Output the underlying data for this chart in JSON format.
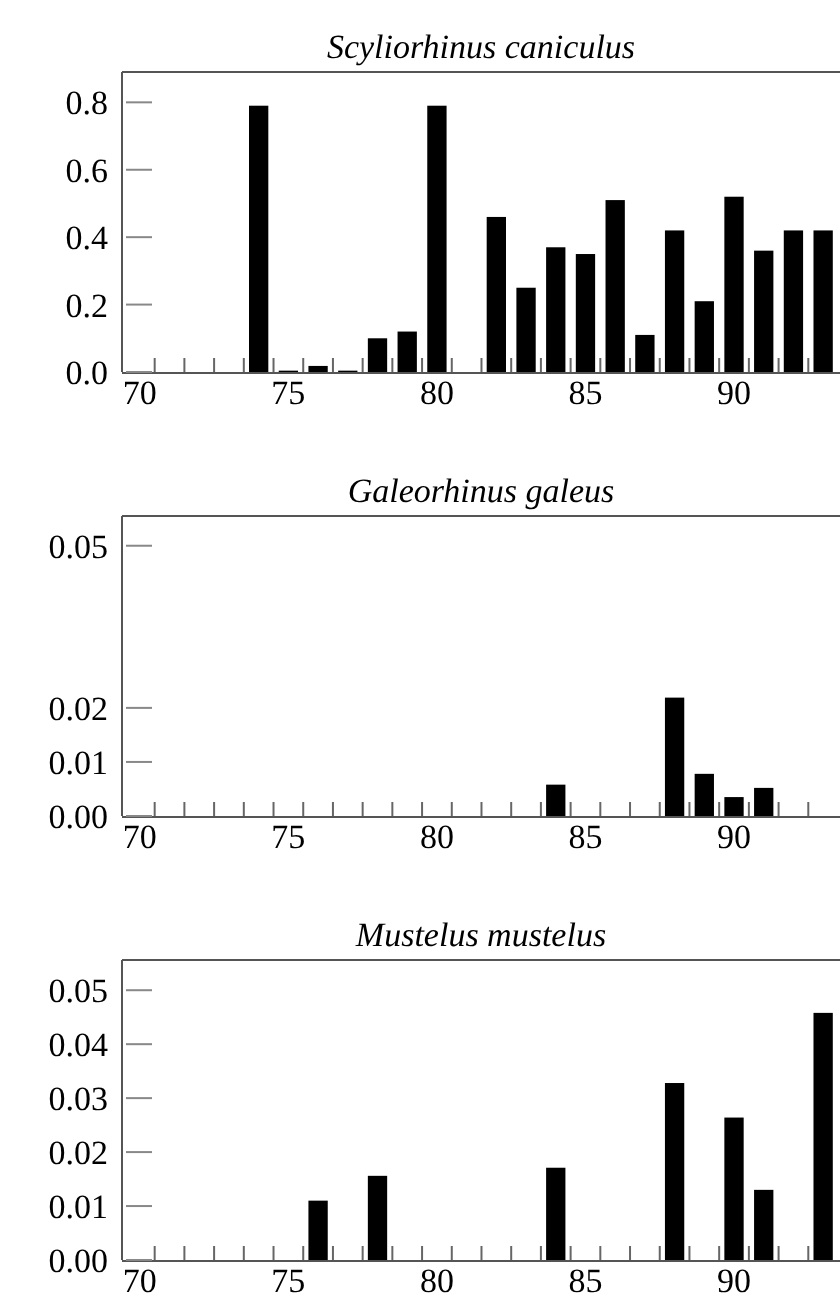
{
  "chart_data": [
    {
      "type": "bar",
      "title": "Scyliorhinus caniculus",
      "color": "#000000",
      "x": [
        74,
        75,
        76,
        77,
        78,
        79,
        80,
        82,
        83,
        84,
        85,
        86,
        87,
        88,
        89,
        90,
        91,
        92,
        93
      ],
      "values": [
        0.79,
        0.004,
        0.018,
        0.004,
        0.1,
        0.12,
        0.79,
        0.46,
        0.25,
        0.37,
        0.35,
        0.51,
        0.11,
        0.42,
        0.21,
        0.52,
        0.36,
        0.42,
        0.42
      ],
      "xlim": [
        69.4,
        93.5
      ],
      "xticks": [
        70,
        75,
        80,
        85,
        90,
        {
          "value": 70.5,
          "label": null
        },
        {
          "value": 71.5,
          "label": null
        },
        {
          "value": 72.5,
          "label": null
        },
        {
          "value": 73.5,
          "label": null
        },
        {
          "value": 74.5,
          "label": null
        },
        {
          "value": 75.5,
          "label": null
        },
        {
          "value": 76.5,
          "label": null
        },
        {
          "value": 77.5,
          "label": null
        },
        {
          "value": 78.5,
          "label": null
        },
        {
          "value": 79.5,
          "label": null
        },
        {
          "value": 80.5,
          "label": null
        },
        {
          "value": 81.5,
          "label": null
        },
        {
          "value": 82.5,
          "label": null
        },
        {
          "value": 83.5,
          "label": null
        },
        {
          "value": 84.5,
          "label": null
        },
        {
          "value": 85.5,
          "label": null
        },
        {
          "value": 86.5,
          "label": null
        },
        {
          "value": 87.5,
          "label": null
        },
        {
          "value": 88.5,
          "label": null
        },
        {
          "value": 89.5,
          "label": null
        },
        {
          "value": 90.5,
          "label": null
        },
        {
          "value": 91.5,
          "label": null
        },
        {
          "value": 92.5,
          "label": null
        }
      ],
      "ylim": [
        0,
        0.89
      ],
      "yticks": [
        {
          "value": 0,
          "label": "0.0"
        },
        {
          "value": 0.2,
          "label": "0.2"
        },
        {
          "value": 0.4,
          "label": "0.4"
        },
        {
          "value": 0.6,
          "label": "0.6"
        },
        {
          "value": 0.8,
          "label": "0.8"
        }
      ]
    },
    {
      "type": "bar",
      "title": "Galeorhinus galeus",
      "color": "#000000",
      "x": [
        84,
        88,
        89,
        90,
        91
      ],
      "values": [
        0.0058,
        0.0219,
        0.0078,
        0.0035,
        0.0052
      ],
      "xlim": [
        69.4,
        93.5
      ],
      "xticks": [
        70,
        75,
        80,
        85,
        90,
        {
          "value": 70.5,
          "label": null
        },
        {
          "value": 71.5,
          "label": null
        },
        {
          "value": 72.5,
          "label": null
        },
        {
          "value": 73.5,
          "label": null
        },
        {
          "value": 74.5,
          "label": null
        },
        {
          "value": 75.5,
          "label": null
        },
        {
          "value": 76.5,
          "label": null
        },
        {
          "value": 77.5,
          "label": null
        },
        {
          "value": 78.5,
          "label": null
        },
        {
          "value": 79.5,
          "label": null
        },
        {
          "value": 80.5,
          "label": null
        },
        {
          "value": 81.5,
          "label": null
        },
        {
          "value": 82.5,
          "label": null
        },
        {
          "value": 83.5,
          "label": null
        },
        {
          "value": 84.5,
          "label": null
        },
        {
          "value": 85.5,
          "label": null
        },
        {
          "value": 86.5,
          "label": null
        },
        {
          "value": 87.5,
          "label": null
        },
        {
          "value": 88.5,
          "label": null
        },
        {
          "value": 89.5,
          "label": null
        },
        {
          "value": 90.5,
          "label": null
        },
        {
          "value": 91.5,
          "label": null
        },
        {
          "value": 92.5,
          "label": null
        }
      ],
      "ylim": [
        0,
        0.0555
      ],
      "yticks": [
        {
          "value": 0,
          "label": "0.00"
        },
        {
          "value": 0.01,
          "label": "0.01"
        },
        {
          "value": 0.02,
          "label": "0.02"
        },
        {
          "value": 0.05,
          "label": "0.05"
        }
      ]
    },
    {
      "type": "bar",
      "title": "Mustelus mustelus",
      "color": "#000000",
      "x": [
        76,
        78,
        84,
        88,
        90,
        91,
        93
      ],
      "values": [
        0.011,
        0.0156,
        0.0171,
        0.0328,
        0.0264,
        0.013,
        0.0458
      ],
      "xlim": [
        69.4,
        93.5
      ],
      "xticks": [
        70,
        75,
        80,
        85,
        90,
        {
          "value": 70.5,
          "label": null
        },
        {
          "value": 71.5,
          "label": null
        },
        {
          "value": 72.5,
          "label": null
        },
        {
          "value": 73.5,
          "label": null
        },
        {
          "value": 74.5,
          "label": null
        },
        {
          "value": 75.5,
          "label": null
        },
        {
          "value": 76.5,
          "label": null
        },
        {
          "value": 77.5,
          "label": null
        },
        {
          "value": 78.5,
          "label": null
        },
        {
          "value": 79.5,
          "label": null
        },
        {
          "value": 80.5,
          "label": null
        },
        {
          "value": 81.5,
          "label": null
        },
        {
          "value": 82.5,
          "label": null
        },
        {
          "value": 83.5,
          "label": null
        },
        {
          "value": 84.5,
          "label": null
        },
        {
          "value": 85.5,
          "label": null
        },
        {
          "value": 86.5,
          "label": null
        },
        {
          "value": 87.5,
          "label": null
        },
        {
          "value": 88.5,
          "label": null
        },
        {
          "value": 89.5,
          "label": null
        },
        {
          "value": 90.5,
          "label": null
        },
        {
          "value": 91.5,
          "label": null
        },
        {
          "value": 92.5,
          "label": null
        }
      ],
      "ylim": [
        0,
        0.0556
      ],
      "yticks": [
        {
          "value": 0,
          "label": "0.00"
        },
        {
          "value": 0.01,
          "label": "0.01"
        },
        {
          "value": 0.02,
          "label": "0.02"
        },
        {
          "value": 0.03,
          "label": "0.03"
        },
        {
          "value": 0.04,
          "label": "0.04"
        },
        {
          "value": 0.05,
          "label": "0.05"
        }
      ]
    }
  ]
}
